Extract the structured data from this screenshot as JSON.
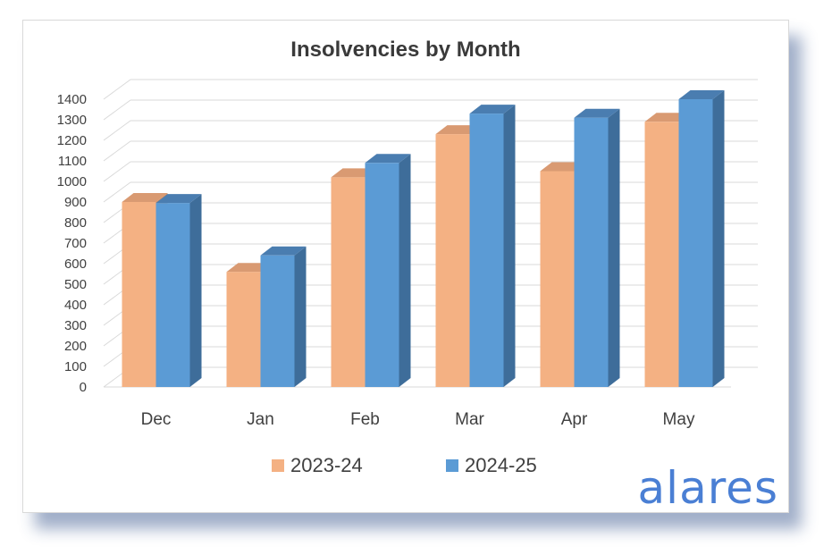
{
  "chart_data": {
    "type": "bar",
    "title": "Insolvencies by Month",
    "categories": [
      "Dec",
      "Jan",
      "Feb",
      "Mar",
      "Apr",
      "May"
    ],
    "series": [
      {
        "name": "2023-24",
        "values": [
          900,
          560,
          1020,
          1230,
          1050,
          1290
        ],
        "color": "#f4b183",
        "side": "#c98a63",
        "top": "#d99a72"
      },
      {
        "name": "2024-25",
        "values": [
          895,
          640,
          1090,
          1330,
          1310,
          1400
        ],
        "color": "#5b9bd5",
        "side": "#3e6d9a",
        "top": "#4a7db0"
      }
    ],
    "yticks": [
      0,
      100,
      200,
      300,
      400,
      500,
      600,
      700,
      800,
      900,
      1000,
      1100,
      1200,
      1300,
      1400
    ],
    "ylim": [
      0,
      1400
    ],
    "xlabel": "",
    "ylabel": "",
    "legend": "bottom"
  },
  "logo": {
    "text": "alares",
    "color": "#4a7fd4"
  }
}
